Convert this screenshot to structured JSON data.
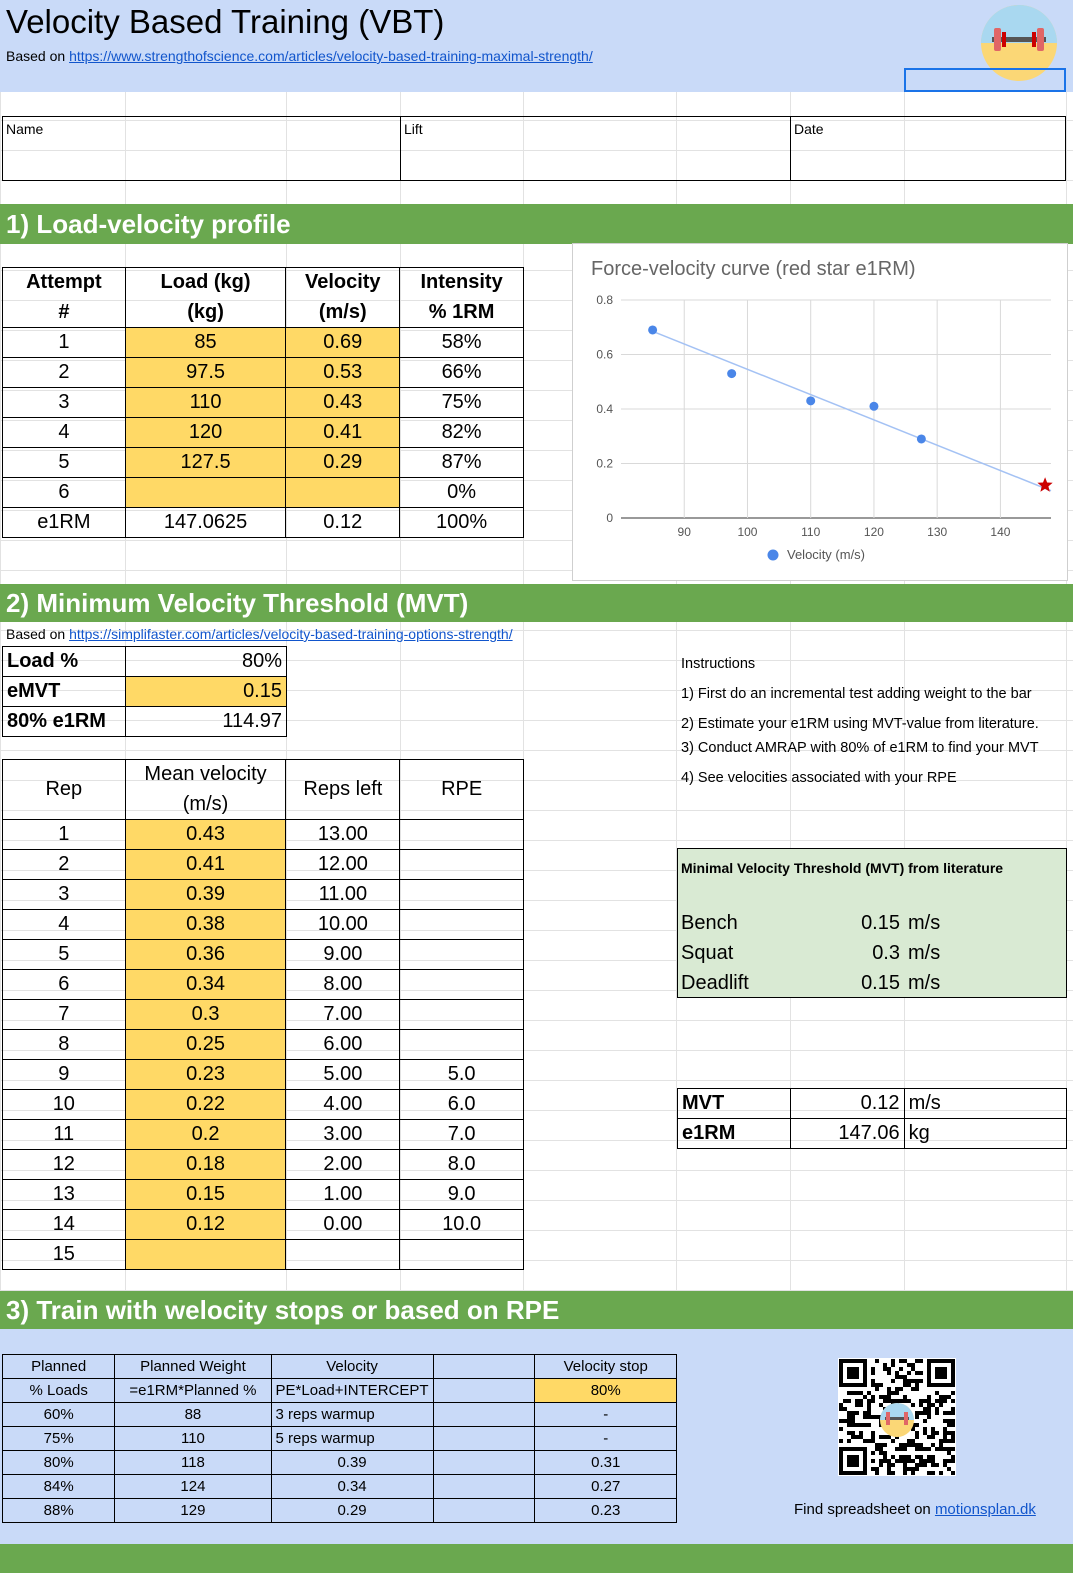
{
  "header": {
    "title": "Velocity Based Training (VBT)",
    "based_on_label": "Based on",
    "source_url": "https://www.strengthofscience.com/articles/velocity-based-training-maximal-strength/"
  },
  "info": {
    "name_label": "Name",
    "lift_label": "Lift",
    "date_label": "Date"
  },
  "section1": {
    "title": "1) Load-velocity profile",
    "columns": [
      {
        "top": "Attempt",
        "bottom": "#"
      },
      {
        "top": "Load (kg)",
        "bottom": "(kg)"
      },
      {
        "top": "Velocity",
        "bottom": "(m/s)"
      },
      {
        "top": "Intensity",
        "bottom": "% 1RM"
      }
    ],
    "rows": [
      [
        "1",
        "85",
        "0.69",
        "58%"
      ],
      [
        "2",
        "97.5",
        "0.53",
        "66%"
      ],
      [
        "3",
        "110",
        "0.43",
        "75%"
      ],
      [
        "4",
        "120",
        "0.41",
        "82%"
      ],
      [
        "5",
        "127.5",
        "0.29",
        "87%"
      ],
      [
        "6",
        "",
        "",
        "0%"
      ]
    ],
    "e1rm_row": [
      "e1RM",
      "147.0625",
      "0.12",
      "100%"
    ]
  },
  "chart_data": {
    "type": "scatter",
    "title": "Force-velocity curve (red star e1RM)",
    "series": [
      {
        "name": "Velocity (m/s)",
        "x": [
          85,
          97.5,
          110,
          120,
          127.5
        ],
        "y": [
          0.69,
          0.53,
          0.43,
          0.41,
          0.29
        ]
      }
    ],
    "trendline": {
      "from": [
        85,
        0.685
      ],
      "to": [
        148,
        0.1
      ]
    },
    "e1rm_point": {
      "x": 147.06,
      "y": 0.12,
      "marker": "star",
      "color": "#cc0000"
    },
    "xlim": [
      80,
      148
    ],
    "ylim": [
      0,
      0.8
    ],
    "xticks": [
      "90",
      "100",
      "110",
      "120",
      "130",
      "140"
    ],
    "yticks": [
      "0",
      "0.2",
      "0.4",
      "0.6",
      "0.8"
    ],
    "legend": "bottom",
    "grid": true,
    "series_color": "#4a86e8"
  },
  "section2": {
    "title": "2) Minimum Velocity Threshold (MVT)",
    "based_on_label": "Based on",
    "source_url": "https://simplifaster.com/articles/velocity-based-training-options-strength/",
    "params": [
      {
        "label": "Load %",
        "value": "80%"
      },
      {
        "label": "eMVT",
        "value": "0.15"
      },
      {
        "label": "80% e1RM",
        "value": "114.97"
      }
    ],
    "columns": [
      {
        "top": "Rep",
        "bottom": ""
      },
      {
        "top": "Mean velocity",
        "bottom": "(m/s)"
      },
      {
        "top": "Reps left",
        "bottom": ""
      },
      {
        "top": "RPE",
        "bottom": ""
      }
    ],
    "rows": [
      [
        "1",
        "0.43",
        "13.00",
        ""
      ],
      [
        "2",
        "0.41",
        "12.00",
        ""
      ],
      [
        "3",
        "0.39",
        "11.00",
        ""
      ],
      [
        "4",
        "0.38",
        "10.00",
        ""
      ],
      [
        "5",
        "0.36",
        "9.00",
        ""
      ],
      [
        "6",
        "0.34",
        "8.00",
        ""
      ],
      [
        "7",
        "0.3",
        "7.00",
        ""
      ],
      [
        "8",
        "0.25",
        "6.00",
        ""
      ],
      [
        "9",
        "0.23",
        "5.00",
        "5.0"
      ],
      [
        "10",
        "0.22",
        "4.00",
        "6.0"
      ],
      [
        "11",
        "0.2",
        "3.00",
        "7.0"
      ],
      [
        "12",
        "0.18",
        "2.00",
        "8.0"
      ],
      [
        "13",
        "0.15",
        "1.00",
        "9.0"
      ],
      [
        "14",
        "0.12",
        "0.00",
        "10.0"
      ],
      [
        "15",
        "",
        "",
        ""
      ]
    ],
    "instructions": {
      "title": "Instructions",
      "steps": [
        "1) First do an incremental test adding weight to the bar",
        "2) Estimate your e1RM using MVT-value from literature.",
        "3) Conduct AMRAP with 80% of e1RM to find your MVT",
        "4) See velocities associated with your RPE"
      ]
    },
    "literature": {
      "title": "Minimal Velocity Threshold (MVT) from literature",
      "rows": [
        {
          "lift": "Bench",
          "value": "0.15",
          "unit": "m/s"
        },
        {
          "lift": "Squat",
          "value": "0.3",
          "unit": "m/s"
        },
        {
          "lift": "Deadlift",
          "value": "0.15",
          "unit": "m/s"
        }
      ]
    },
    "result": [
      {
        "label": "MVT",
        "value": "0.12",
        "unit": "m/s"
      },
      {
        "label": "e1RM",
        "value": "147.06",
        "unit": "kg"
      }
    ]
  },
  "section3": {
    "title": "3) Train with welocity stops or based on RPE",
    "headers_top": [
      "Planned",
      "Planned Weight",
      "Velocity",
      "",
      "Velocity stop"
    ],
    "headers_bottom": [
      "% Loads",
      "=e1RM*Planned %",
      "PE*Load+INTERCEPT",
      "",
      "80%"
    ],
    "rows": [
      [
        "60%",
        "88",
        "3 reps warmup",
        "-"
      ],
      [
        "75%",
        "110",
        "5 reps warmup",
        "-"
      ],
      [
        "80%",
        "118",
        "0.39",
        "0.31"
      ],
      [
        "84%",
        "124",
        "0.34",
        "0.27"
      ],
      [
        "88%",
        "129",
        "0.29",
        "0.23"
      ]
    ],
    "find_text": "Find spreadsheet on",
    "find_link": "motionsplan.dk"
  }
}
